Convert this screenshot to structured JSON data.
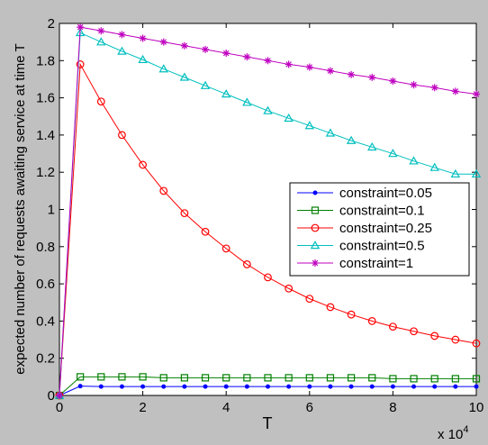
{
  "chart_data": {
    "type": "line",
    "title": "",
    "xlabel": "T",
    "ylabel": "expected number of requests awaiting service at time T",
    "x_multiplier_label": {
      "base": "x 10",
      "exponent": "4"
    },
    "xlim": [
      0,
      10
    ],
    "ylim": [
      0,
      2
    ],
    "x_ticks": [
      0,
      2,
      4,
      6,
      8,
      10
    ],
    "y_ticks": [
      0,
      0.2,
      0.4,
      0.6,
      0.8,
      1,
      1.2,
      1.4,
      1.6,
      1.8,
      2
    ],
    "grid": false,
    "legend_position": "center-right",
    "x": [
      0,
      0.5,
      1,
      1.5,
      2,
      2.5,
      3,
      3.5,
      4,
      4.5,
      5,
      5.5,
      6,
      6.5,
      7,
      7.5,
      8,
      8.5,
      9,
      9.5,
      10
    ],
    "series": [
      {
        "name": "constraint=0.05",
        "color": "#0000ff",
        "marker": "dot",
        "values": [
          0,
          0.05,
          0.048,
          0.048,
          0.048,
          0.048,
          0.048,
          0.048,
          0.048,
          0.048,
          0.048,
          0.048,
          0.048,
          0.048,
          0.048,
          0.048,
          0.048,
          0.048,
          0.048,
          0.048,
          0.048
        ]
      },
      {
        "name": "constraint=0.1",
        "color": "#008000",
        "marker": "square",
        "values": [
          0,
          0.1,
          0.1,
          0.1,
          0.1,
          0.095,
          0.095,
          0.095,
          0.095,
          0.095,
          0.095,
          0.095,
          0.095,
          0.095,
          0.095,
          0.095,
          0.09,
          0.09,
          0.09,
          0.09,
          0.09
        ]
      },
      {
        "name": "constraint=0.25",
        "color": "#ff0000",
        "marker": "circle",
        "values": [
          0,
          1.78,
          1.58,
          1.4,
          1.24,
          1.1,
          0.98,
          0.88,
          0.79,
          0.705,
          0.635,
          0.575,
          0.52,
          0.475,
          0.435,
          0.4,
          0.37,
          0.345,
          0.32,
          0.3,
          0.28
        ]
      },
      {
        "name": "constraint=0.5",
        "color": "#00bfbf",
        "marker": "triangle",
        "values": [
          0,
          1.95,
          1.9,
          1.85,
          1.805,
          1.755,
          1.71,
          1.665,
          1.62,
          1.575,
          1.53,
          1.49,
          1.45,
          1.41,
          1.37,
          1.335,
          1.3,
          1.26,
          1.225,
          1.19,
          1.19
        ]
      },
      {
        "name": "constraint=1",
        "color": "#bf00bf",
        "marker": "star",
        "values": [
          0,
          1.98,
          1.96,
          1.94,
          1.92,
          1.9,
          1.88,
          1.86,
          1.84,
          1.82,
          1.8,
          1.78,
          1.765,
          1.745,
          1.725,
          1.71,
          1.69,
          1.67,
          1.655,
          1.635,
          1.62
        ]
      }
    ]
  },
  "colors": {
    "background": "#c0c0c0",
    "axes_face": "#ffffff"
  }
}
